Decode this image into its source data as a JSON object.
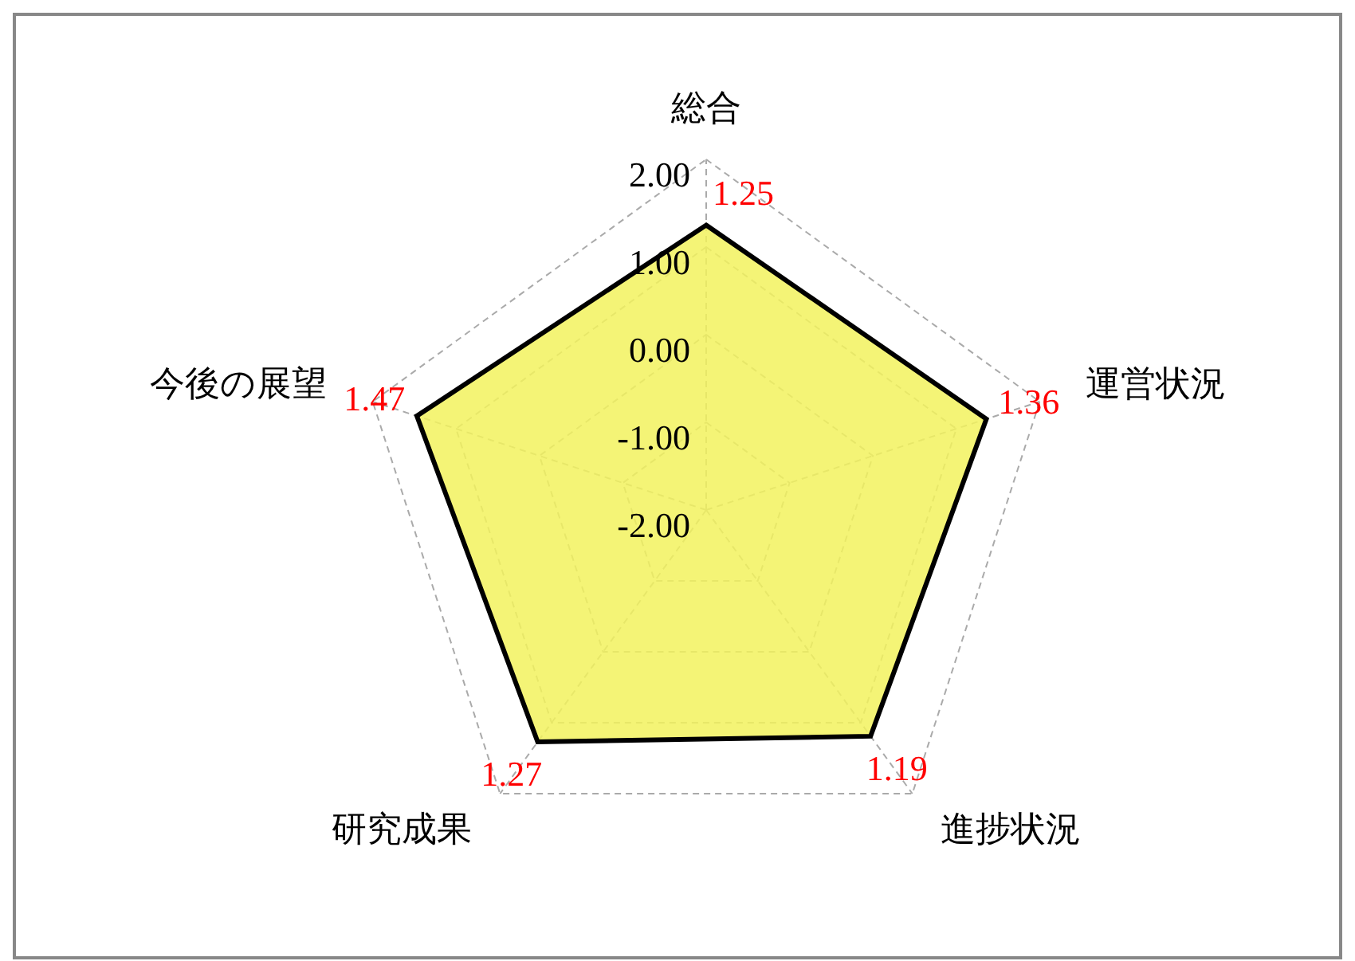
{
  "chart_data": {
    "type": "radar",
    "categories": [
      "総合",
      "運営状況",
      "進捗状況",
      "研究成果",
      "今後の展望"
    ],
    "series": [
      {
        "color": "#f2f25e",
        "values": [
          1.25,
          1.36,
          1.19,
          1.27,
          1.47
        ]
      }
    ],
    "ylim": [
      -2,
      2
    ],
    "yticks": [
      {
        "value": -2,
        "label": "-2.00"
      },
      {
        "value": -1,
        "label": "-1.00"
      },
      {
        "value": 0,
        "label": "0.00"
      },
      {
        "value": 1,
        "label": "1.00"
      },
      {
        "value": 2,
        "label": "2.00"
      }
    ],
    "data_labels": true,
    "grid": true
  }
}
